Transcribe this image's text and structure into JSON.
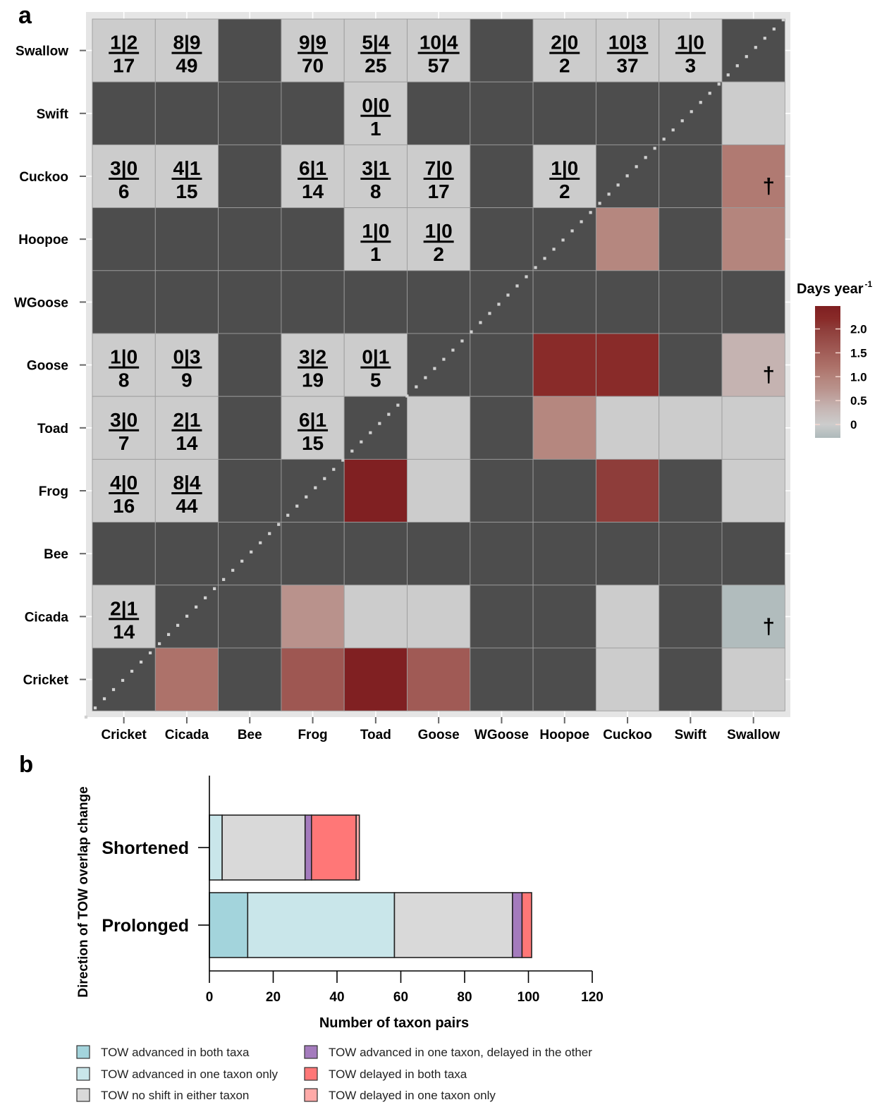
{
  "figure": {
    "panel_a_label": "a",
    "panel_b_label": "b"
  },
  "chart_data": [
    {
      "type": "heatmap",
      "title": "",
      "x_categories": [
        "Cricket",
        "Cicada",
        "Bee",
        "Frog",
        "Toad",
        "Goose",
        "WGoose",
        "Hoopoe",
        "Cuckoo",
        "Swift",
        "Swallow"
      ],
      "y_categories": [
        "Swallow",
        "Swift",
        "Cuckoo",
        "Hoopoe",
        "WGoose",
        "Goose",
        "Toad",
        "Frog",
        "Bee",
        "Cicada",
        "Cricket"
      ],
      "diagonal_line": "dotted",
      "colorbar": {
        "title": "Days year",
        "title_superscript": "-1",
        "range": [
          -0.28,
          2.48
        ],
        "ticks": [
          0,
          0.5,
          1.0,
          1.5,
          2.0
        ],
        "tick_labels": [
          "0",
          "0.5",
          "1.0",
          "1.5",
          "2.0"
        ],
        "stops": [
          [
            -0.28,
            "#aebabb"
          ],
          [
            0.0,
            "#cccccc"
          ],
          [
            0.37,
            "#c5b3b1"
          ],
          [
            0.75,
            "#b9928c"
          ],
          [
            0.93,
            "#b5877f"
          ],
          [
            1.1,
            "#b07a72"
          ],
          [
            1.2,
            "#ad726a"
          ],
          [
            1.6,
            "#9e5752"
          ],
          [
            2.0,
            "#8e3d3a"
          ],
          [
            2.2,
            "#892b29"
          ],
          [
            2.48,
            "#7f1f21"
          ]
        ]
      },
      "colors": {
        "no_data": "#4d4d4d",
        "count_cell": "#cccccc",
        "panel_background": "#e5e5e5",
        "diagonal": "#d0d0d0"
      },
      "cells": [
        [
          {
            "counts": "1|2",
            "total": "17"
          },
          {
            "counts": "8|9",
            "total": "49"
          },
          null,
          {
            "counts": "9|9",
            "total": "70"
          },
          {
            "counts": "5|4",
            "total": "25"
          },
          {
            "counts": "10|4",
            "total": "57"
          },
          null,
          {
            "counts": "2|0",
            "total": "2"
          },
          {
            "counts": "10|3",
            "total": "37"
          },
          {
            "counts": "1|0",
            "total": "3"
          },
          null
        ],
        [
          null,
          null,
          null,
          null,
          {
            "counts": "0|0",
            "total": "1"
          },
          null,
          null,
          null,
          null,
          null,
          {
            "value": 0
          }
        ],
        [
          {
            "counts": "3|0",
            "total": "6"
          },
          {
            "counts": "4|1",
            "total": "15"
          },
          null,
          {
            "counts": "6|1",
            "total": "14"
          },
          {
            "counts": "3|1",
            "total": "8"
          },
          {
            "counts": "7|0",
            "total": "17"
          },
          null,
          {
            "counts": "1|0",
            "total": "2"
          },
          null,
          null,
          {
            "value": 1.1,
            "marker": "†"
          }
        ],
        [
          null,
          null,
          null,
          null,
          {
            "counts": "1|0",
            "total": "1"
          },
          {
            "counts": "1|0",
            "total": "2"
          },
          null,
          null,
          {
            "value": 0.93
          },
          null,
          {
            "value": 0.95
          }
        ],
        [
          null,
          null,
          null,
          null,
          null,
          null,
          null,
          null,
          null,
          null,
          null
        ],
        [
          {
            "counts": "1|0",
            "total": "8"
          },
          {
            "counts": "0|3",
            "total": "9"
          },
          null,
          {
            "counts": "3|2",
            "total": "19"
          },
          {
            "counts": "0|1",
            "total": "5"
          },
          null,
          null,
          {
            "value": 2.2
          },
          {
            "value": 2.2
          },
          null,
          {
            "value": 0.37,
            "marker": "†"
          }
        ],
        [
          {
            "counts": "3|0",
            "total": "7"
          },
          {
            "counts": "2|1",
            "total": "14"
          },
          null,
          {
            "counts": "6|1",
            "total": "15"
          },
          null,
          {
            "value": 0
          },
          null,
          {
            "value": 0.93
          },
          {
            "value": 0
          },
          {
            "value": 0
          },
          {
            "value": 0
          }
        ],
        [
          {
            "counts": "4|0",
            "total": "16"
          },
          {
            "counts": "8|4",
            "total": "44"
          },
          null,
          null,
          {
            "value": 2.45
          },
          {
            "value": 0
          },
          null,
          null,
          {
            "value": 2.0
          },
          null,
          {
            "value": 0
          }
        ],
        [
          null,
          null,
          null,
          null,
          null,
          null,
          null,
          null,
          null,
          null,
          null
        ],
        [
          {
            "counts": "2|1",
            "total": "14"
          },
          null,
          null,
          {
            "value": 0.75
          },
          {
            "value": 0
          },
          {
            "value": 0
          },
          null,
          null,
          {
            "value": 0
          },
          null,
          {
            "value": -0.25,
            "marker": "†"
          }
        ],
        [
          null,
          {
            "value": 1.2
          },
          null,
          {
            "value": 1.6
          },
          {
            "value": 2.45
          },
          {
            "value": 1.55
          },
          null,
          null,
          {
            "value": 0
          },
          null,
          {
            "value": 0
          }
        ]
      ]
    },
    {
      "type": "bar",
      "orientation": "horizontal",
      "stacked": true,
      "title": "",
      "categories": [
        "Shortened",
        "Prolonged"
      ],
      "xlabel": "Number of taxon pairs",
      "ylabel": "Direction of TOW overlap change",
      "xlim": [
        0,
        120
      ],
      "xticks": [
        0,
        20,
        40,
        60,
        80,
        100,
        120
      ],
      "xtick_labels": [
        "0",
        "20",
        "40",
        "60",
        "80",
        "100",
        "120"
      ],
      "grid": false,
      "legend_position": "bottom",
      "series": [
        {
          "name": "TOW advanced in both taxa",
          "color": "#a3d4dc",
          "values": [
            0,
            12
          ]
        },
        {
          "name": "TOW advanced in one taxon only",
          "color": "#c9e6ea",
          "values": [
            4,
            46
          ]
        },
        {
          "name": "TOW no shift in either taxon",
          "color": "#d9d9d9",
          "values": [
            26,
            37
          ]
        },
        {
          "name": "TOW advanced in one taxon, delayed in the other",
          "color": "#a47bbd",
          "values": [
            2,
            3
          ]
        },
        {
          "name": "TOW delayed in both taxa",
          "color": "#ff7777",
          "values": [
            14,
            3
          ]
        },
        {
          "name": "TOW delayed in one taxon only",
          "color": "#ffaaa8",
          "values": [
            1,
            0
          ]
        }
      ]
    }
  ]
}
